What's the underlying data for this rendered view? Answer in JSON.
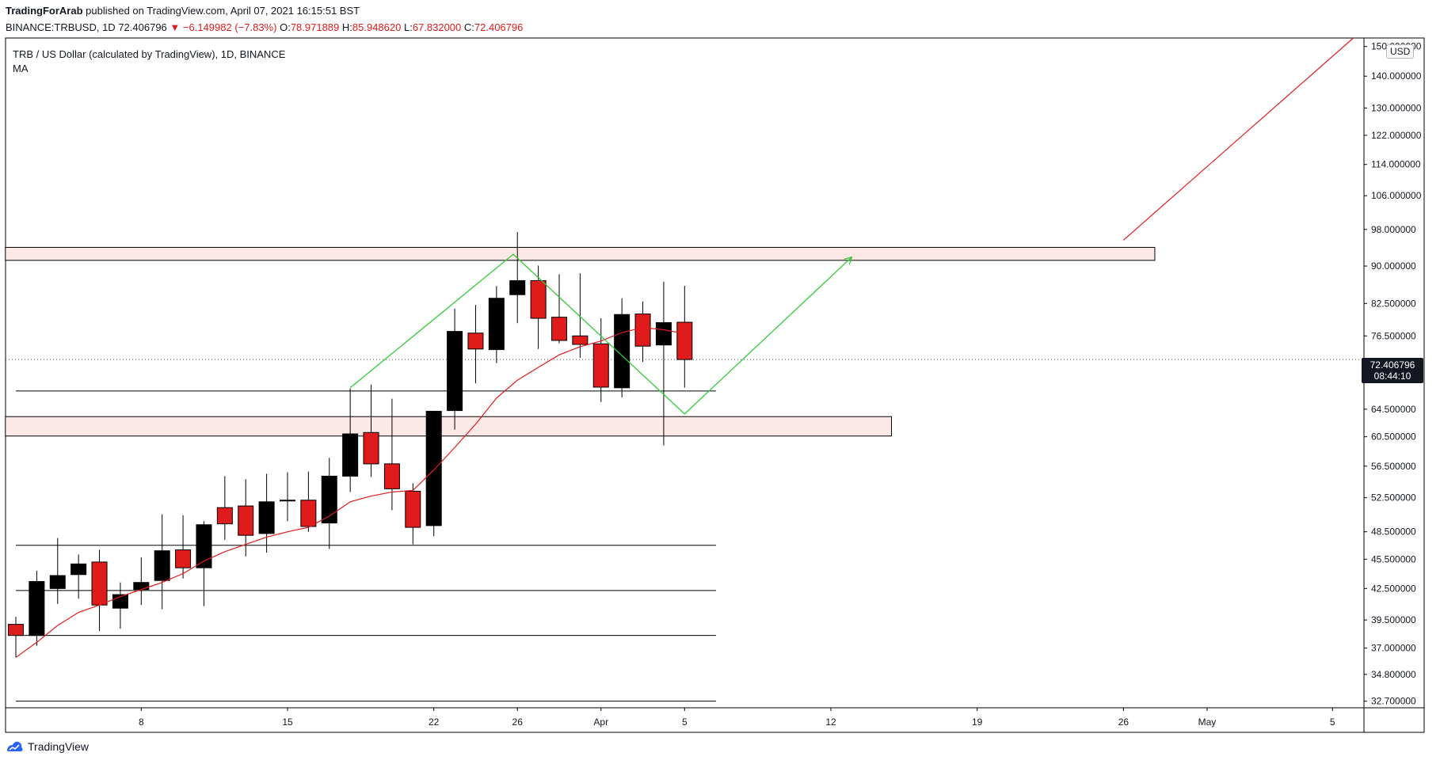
{
  "header": {
    "author": "TradingForArab",
    "published_text": "published on TradingView.com, April 07, 2021 16:15:51 BST",
    "symbol": "BINANCE:TRBUSD, 1D",
    "last": "72.406796",
    "change_arrow": "▼",
    "change": "−6.149982 (−7.83%)",
    "o_label": "O:",
    "o_value": "78.971889",
    "h_label": "H:",
    "h_value": "85.948620",
    "l_label": "L:",
    "l_value": "67.832000",
    "c_label": "C:",
    "c_value": "72.406796"
  },
  "legend": {
    "title": "TRB / US Dollar (calculated by TradingView), 1D, BINANCE",
    "indicator": "MA"
  },
  "price_scale": {
    "currency": "USD",
    "last_price": "72.406796",
    "countdown": "08:44:10"
  },
  "footer": {
    "brand": "TradingView",
    "logo_icon": "tradingview-logo-icon"
  },
  "colors": {
    "up": "#000000",
    "down": "#e01b1b",
    "ma": "#e01b1b",
    "zone_fill": "#fde8e8",
    "projection_green": "#33cc33",
    "projection_red": "#e01b1b"
  },
  "chart_data": {
    "type": "candlestick",
    "title": "TRB / US Dollar (calculated by TradingView), 1D, BINANCE",
    "x_tick_labels": [
      "8",
      "15",
      "22",
      "26",
      "Apr",
      "5",
      "12",
      "19",
      "26",
      "May",
      "5"
    ],
    "y_tick_labels": [
      "150.000000",
      "140.000000",
      "130.000000",
      "122.000000",
      "114.000000",
      "106.000000",
      "98.000000",
      "90.000000",
      "82.500000",
      "76.500000",
      "64.500000",
      "60.500000",
      "56.500000",
      "52.500000",
      "48.500000",
      "45.500000",
      "42.500000",
      "39.500000",
      "37.000000",
      "34.800000",
      "32.700000"
    ],
    "y_scale": "log",
    "ylim": [
      32.2,
      153
    ],
    "x_tick_days": [
      6,
      13,
      20,
      24,
      28,
      32,
      39,
      46,
      53,
      57,
      63
    ],
    "xlim": [
      0,
      65
    ],
    "candles": [
      {
        "day": 0,
        "o": 39.1,
        "h": 39.8,
        "l": 36.2,
        "c": 38.1
      },
      {
        "day": 1,
        "o": 38.1,
        "h": 44.3,
        "l": 37.2,
        "c": 43.2
      },
      {
        "day": 2,
        "o": 42.5,
        "h": 47.8,
        "l": 41.0,
        "c": 43.8
      },
      {
        "day": 3,
        "o": 43.9,
        "h": 46.0,
        "l": 41.5,
        "c": 45.0
      },
      {
        "day": 4,
        "o": 45.2,
        "h": 46.5,
        "l": 38.5,
        "c": 40.9
      },
      {
        "day": 5,
        "o": 40.6,
        "h": 43.1,
        "l": 38.7,
        "c": 41.9
      },
      {
        "day": 6,
        "o": 42.4,
        "h": 45.7,
        "l": 40.9,
        "c": 43.1
      },
      {
        "day": 7,
        "o": 43.3,
        "h": 50.5,
        "l": 40.5,
        "c": 46.4
      },
      {
        "day": 8,
        "o": 46.5,
        "h": 50.4,
        "l": 43.5,
        "c": 44.6
      },
      {
        "day": 9,
        "o": 44.6,
        "h": 49.7,
        "l": 40.8,
        "c": 49.3
      },
      {
        "day": 10,
        "o": 51.3,
        "h": 55.2,
        "l": 47.6,
        "c": 49.4
      },
      {
        "day": 11,
        "o": 51.5,
        "h": 54.8,
        "l": 45.8,
        "c": 48.1
      },
      {
        "day": 12,
        "o": 48.3,
        "h": 55.5,
        "l": 46.2,
        "c": 52.0
      },
      {
        "day": 13,
        "o": 52.2,
        "h": 55.7,
        "l": 49.7,
        "c": 52.2
      },
      {
        "day": 14,
        "o": 52.2,
        "h": 55.8,
        "l": 48.5,
        "c": 49.1
      },
      {
        "day": 15,
        "o": 49.5,
        "h": 57.6,
        "l": 46.6,
        "c": 55.2
      },
      {
        "day": 16,
        "o": 55.2,
        "h": 67.7,
        "l": 53.2,
        "c": 60.9
      },
      {
        "day": 17,
        "o": 61.1,
        "h": 68.3,
        "l": 55.1,
        "c": 56.8
      },
      {
        "day": 18,
        "o": 56.8,
        "h": 66.1,
        "l": 51.0,
        "c": 53.6
      },
      {
        "day": 19,
        "o": 53.3,
        "h": 54.3,
        "l": 47.1,
        "c": 49.0
      },
      {
        "day": 20,
        "o": 49.2,
        "h": 63.6,
        "l": 48.0,
        "c": 64.2
      },
      {
        "day": 21,
        "o": 64.3,
        "h": 81.5,
        "l": 61.5,
        "c": 77.3
      },
      {
        "day": 22,
        "o": 77.0,
        "h": 82.2,
        "l": 68.5,
        "c": 74.2
      },
      {
        "day": 23,
        "o": 74.1,
        "h": 85.9,
        "l": 71.8,
        "c": 83.5
      },
      {
        "day": 24,
        "o": 84.2,
        "h": 97.4,
        "l": 78.8,
        "c": 87.0
      },
      {
        "day": 25,
        "o": 87.0,
        "h": 90.1,
        "l": 74.2,
        "c": 79.7
      },
      {
        "day": 26,
        "o": 79.9,
        "h": 88.3,
        "l": 75.2,
        "c": 75.7
      },
      {
        "day": 27,
        "o": 76.5,
        "h": 88.5,
        "l": 72.7,
        "c": 75.0
      },
      {
        "day": 28,
        "o": 75.1,
        "h": 79.7,
        "l": 65.6,
        "c": 67.9
      },
      {
        "day": 29,
        "o": 67.8,
        "h": 83.5,
        "l": 66.3,
        "c": 80.4
      },
      {
        "day": 30,
        "o": 80.5,
        "h": 82.9,
        "l": 72.0,
        "c": 74.7
      },
      {
        "day": 31,
        "o": 74.9,
        "h": 86.8,
        "l": 59.3,
        "c": 78.9
      },
      {
        "day": 32,
        "o": 78.97,
        "h": 85.95,
        "l": 67.83,
        "c": 72.41
      }
    ],
    "ma_series": {
      "name": "MA",
      "points": [
        [
          0,
          36.2
        ],
        [
          1,
          37.5
        ],
        [
          2,
          39.0
        ],
        [
          3,
          40.2
        ],
        [
          4,
          40.9
        ],
        [
          5,
          41.7
        ],
        [
          6,
          42.4
        ],
        [
          7,
          43.1
        ],
        [
          8,
          44.0
        ],
        [
          9,
          45.3
        ],
        [
          10,
          46.3
        ],
        [
          11,
          47.1
        ],
        [
          12,
          47.9
        ],
        [
          13,
          48.5
        ],
        [
          14,
          49.0
        ],
        [
          15,
          50.3
        ],
        [
          16,
          52.0
        ],
        [
          17,
          52.7
        ],
        [
          18,
          53.2
        ],
        [
          19,
          53.4
        ],
        [
          20,
          56.0
        ],
        [
          21,
          59.0
        ],
        [
          22,
          62.3
        ],
        [
          23,
          66.2
        ],
        [
          24,
          69.0
        ],
        [
          25,
          71.1
        ],
        [
          26,
          73.2
        ],
        [
          27,
          74.6
        ],
        [
          28,
          75.6
        ],
        [
          29,
          77.1
        ],
        [
          30,
          78.0
        ],
        [
          31,
          77.6
        ],
        [
          32,
          76.9
        ]
      ]
    },
    "last_price_line": 72.41,
    "horizontal_lines": [
      {
        "price": 67.3,
        "from_day": 0,
        "to_day": 33.5
      },
      {
        "price": 47.0,
        "from_day": 0,
        "to_day": 33.5
      },
      {
        "price": 42.3,
        "from_day": 0,
        "to_day": 33.5
      },
      {
        "price": 38.1,
        "from_day": 0,
        "to_day": 33.5
      },
      {
        "price": 32.7,
        "from_day": 0,
        "to_day": 33.5
      }
    ],
    "zones": [
      {
        "from_day": -0.5,
        "to_day": 54.5,
        "price_top": 94.0,
        "price_bottom": 91.2
      },
      {
        "from_day": -0.5,
        "to_day": 41.9,
        "price_top": 63.4,
        "price_bottom": 60.6
      }
    ],
    "projection_path": [
      [
        16,
        67.8
      ],
      [
        23.8,
        92.5
      ],
      [
        32,
        63.8
      ],
      [
        40,
        91.9
      ]
    ],
    "projection_red": [
      [
        53,
        95.6
      ],
      [
        64,
        153
      ]
    ]
  }
}
